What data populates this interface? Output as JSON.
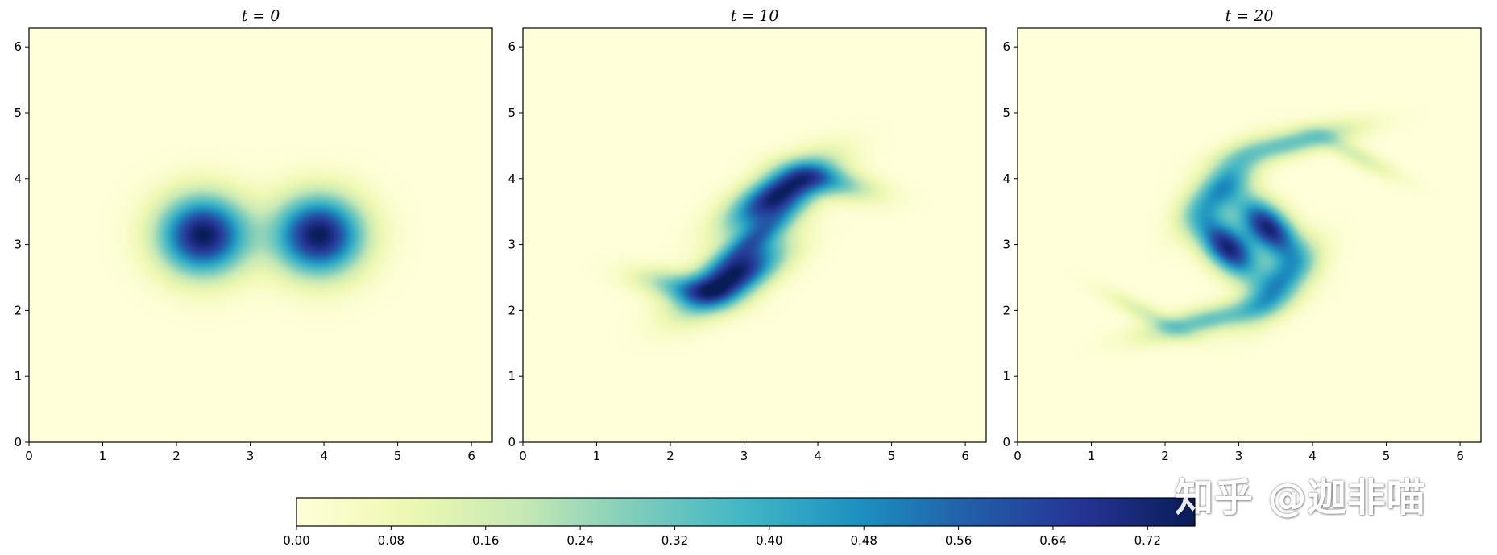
{
  "watermark": "知乎 @迦非喵",
  "colormap": {
    "name": "YlGnBu",
    "stops": [
      "#ffffd9",
      "#edf8b1",
      "#c7e9b4",
      "#7fcdbb",
      "#41b6c4",
      "#1d91c0",
      "#225ea8",
      "#253494",
      "#081d58"
    ],
    "vmin": 0,
    "vmax": 0.76
  },
  "chart_data": [
    {
      "type": "heatmap",
      "title": "t = 0",
      "xlim": [
        0,
        6.283
      ],
      "ylim": [
        0,
        6.283
      ],
      "xticks": [
        "0",
        "1",
        "2",
        "3",
        "4",
        "5",
        "6"
      ],
      "yticks": [
        "0",
        "1",
        "2",
        "3",
        "4",
        "5",
        "6"
      ],
      "grid": false,
      "blobs": [
        {
          "x": 2.36,
          "y": 3.14,
          "sx": 0.42,
          "sy": 0.42,
          "angle": 0,
          "peak": 0.76
        },
        {
          "x": 3.93,
          "y": 3.14,
          "sx": 0.42,
          "sy": 0.42,
          "angle": 0,
          "peak": 0.76
        }
      ]
    },
    {
      "type": "heatmap",
      "title": "t = 10",
      "xlim": [
        0,
        6.283
      ],
      "ylim": [
        0,
        6.283
      ],
      "xticks": [
        "0",
        "1",
        "2",
        "3",
        "4",
        "5",
        "6"
      ],
      "yticks": [
        "0",
        "1",
        "2",
        "3",
        "4",
        "5",
        "6"
      ],
      "grid": false,
      "blobs": [
        {
          "x": 3.45,
          "y": 3.75,
          "sx": 0.55,
          "sy": 0.22,
          "angle": 35,
          "peak": 0.74
        },
        {
          "x": 2.85,
          "y": 2.5,
          "sx": 0.55,
          "sy": 0.22,
          "angle": 35,
          "peak": 0.74
        },
        {
          "x": 4.2,
          "y": 3.95,
          "sx": 0.45,
          "sy": 0.16,
          "angle": -15,
          "peak": 0.3
        },
        {
          "x": 2.15,
          "y": 2.35,
          "sx": 0.45,
          "sy": 0.16,
          "angle": -15,
          "peak": 0.3
        },
        {
          "x": 3.15,
          "y": 3.1,
          "sx": 0.5,
          "sy": 0.14,
          "angle": 38,
          "peak": 0.35
        }
      ]
    },
    {
      "type": "heatmap",
      "title": "t = 20",
      "xlim": [
        0,
        6.283
      ],
      "ylim": [
        0,
        6.283
      ],
      "xticks": [
        "0",
        "1",
        "2",
        "3",
        "4",
        "5",
        "6"
      ],
      "yticks": [
        "0",
        "1",
        "2",
        "3",
        "4",
        "5",
        "6"
      ],
      "grid": false,
      "blobs": [
        {
          "x": 3.4,
          "y": 3.25,
          "sx": 0.38,
          "sy": 0.2,
          "angle": -50,
          "peak": 0.72
        },
        {
          "x": 2.85,
          "y": 2.95,
          "sx": 0.38,
          "sy": 0.2,
          "angle": -50,
          "peak": 0.72
        },
        {
          "x": 2.75,
          "y": 3.85,
          "sx": 0.45,
          "sy": 0.2,
          "angle": 50,
          "peak": 0.45
        },
        {
          "x": 3.55,
          "y": 2.4,
          "sx": 0.45,
          "sy": 0.2,
          "angle": 50,
          "peak": 0.45
        },
        {
          "x": 3.75,
          "y": 4.55,
          "sx": 0.6,
          "sy": 0.14,
          "angle": 15,
          "peak": 0.32
        },
        {
          "x": 2.55,
          "y": 1.85,
          "sx": 0.6,
          "sy": 0.14,
          "angle": 15,
          "peak": 0.32
        },
        {
          "x": 4.6,
          "y": 4.35,
          "sx": 0.45,
          "sy": 0.1,
          "angle": -30,
          "peak": 0.15
        },
        {
          "x": 1.75,
          "y": 1.95,
          "sx": 0.45,
          "sy": 0.1,
          "angle": -30,
          "peak": 0.15
        }
      ]
    }
  ],
  "colorbar": {
    "ticks": [
      "0.00",
      "0.08",
      "0.16",
      "0.24",
      "0.32",
      "0.40",
      "0.48",
      "0.56",
      "0.64",
      "0.72"
    ],
    "values": [
      0,
      0.08,
      0.16,
      0.24,
      0.32,
      0.4,
      0.48,
      0.56,
      0.64,
      0.72
    ]
  }
}
